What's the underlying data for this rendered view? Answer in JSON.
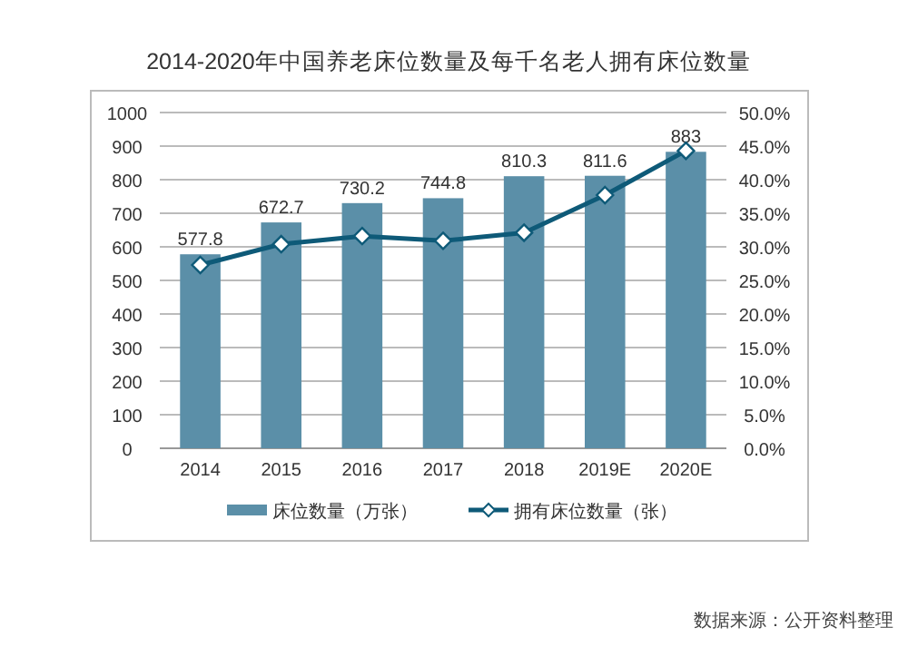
{
  "chart_data": {
    "type": "bar",
    "title": "2014-2020年中国养老床位数量及每千名老人拥有床位数量",
    "categories": [
      "2014",
      "2015",
      "2016",
      "2017",
      "2018",
      "2019E",
      "2020E"
    ],
    "series": [
      {
        "name": "床位数量（万张）",
        "color": "#5b8fa8",
        "values": [
          577.8,
          672.7,
          730.2,
          744.8,
          810.3,
          811.6,
          883
        ],
        "value_labels": [
          "577.8",
          "672.7",
          "730.2",
          "744.8",
          "810.3",
          "811.6",
          "883"
        ]
      },
      {
        "name": "拥有床位数量（张）",
        "type": "line",
        "axis": "y2",
        "color": "#0e5a78",
        "marker": "diamond",
        "values": [
          27.3,
          30.4,
          31.6,
          30.9,
          32.1,
          37.7,
          44.3
        ]
      }
    ],
    "ylim": [
      0,
      1000
    ],
    "yticks": [
      0,
      100,
      200,
      300,
      400,
      500,
      600,
      700,
      800,
      900,
      1000
    ],
    "y2lim": [
      0,
      50
    ],
    "y2ticks": [
      {
        "value": 0,
        "label": "0.0%"
      },
      {
        "value": 5,
        "label": "5.0%"
      },
      {
        "value": 10,
        "label": "10.0%"
      },
      {
        "value": 15,
        "label": "15.0%"
      },
      {
        "value": 20,
        "label": "20.0%"
      },
      {
        "value": 25,
        "label": "25.0%"
      },
      {
        "value": 30,
        "label": "30.0%"
      },
      {
        "value": 35,
        "label": "35.0%"
      },
      {
        "value": 40,
        "label": "40.0%"
      },
      {
        "value": 45,
        "label": "45.0%"
      },
      {
        "value": 50,
        "label": "50.0%"
      }
    ],
    "grid": "y",
    "legend": "bottom",
    "annotations": [
      "数据来源：公开资料整理"
    ]
  }
}
